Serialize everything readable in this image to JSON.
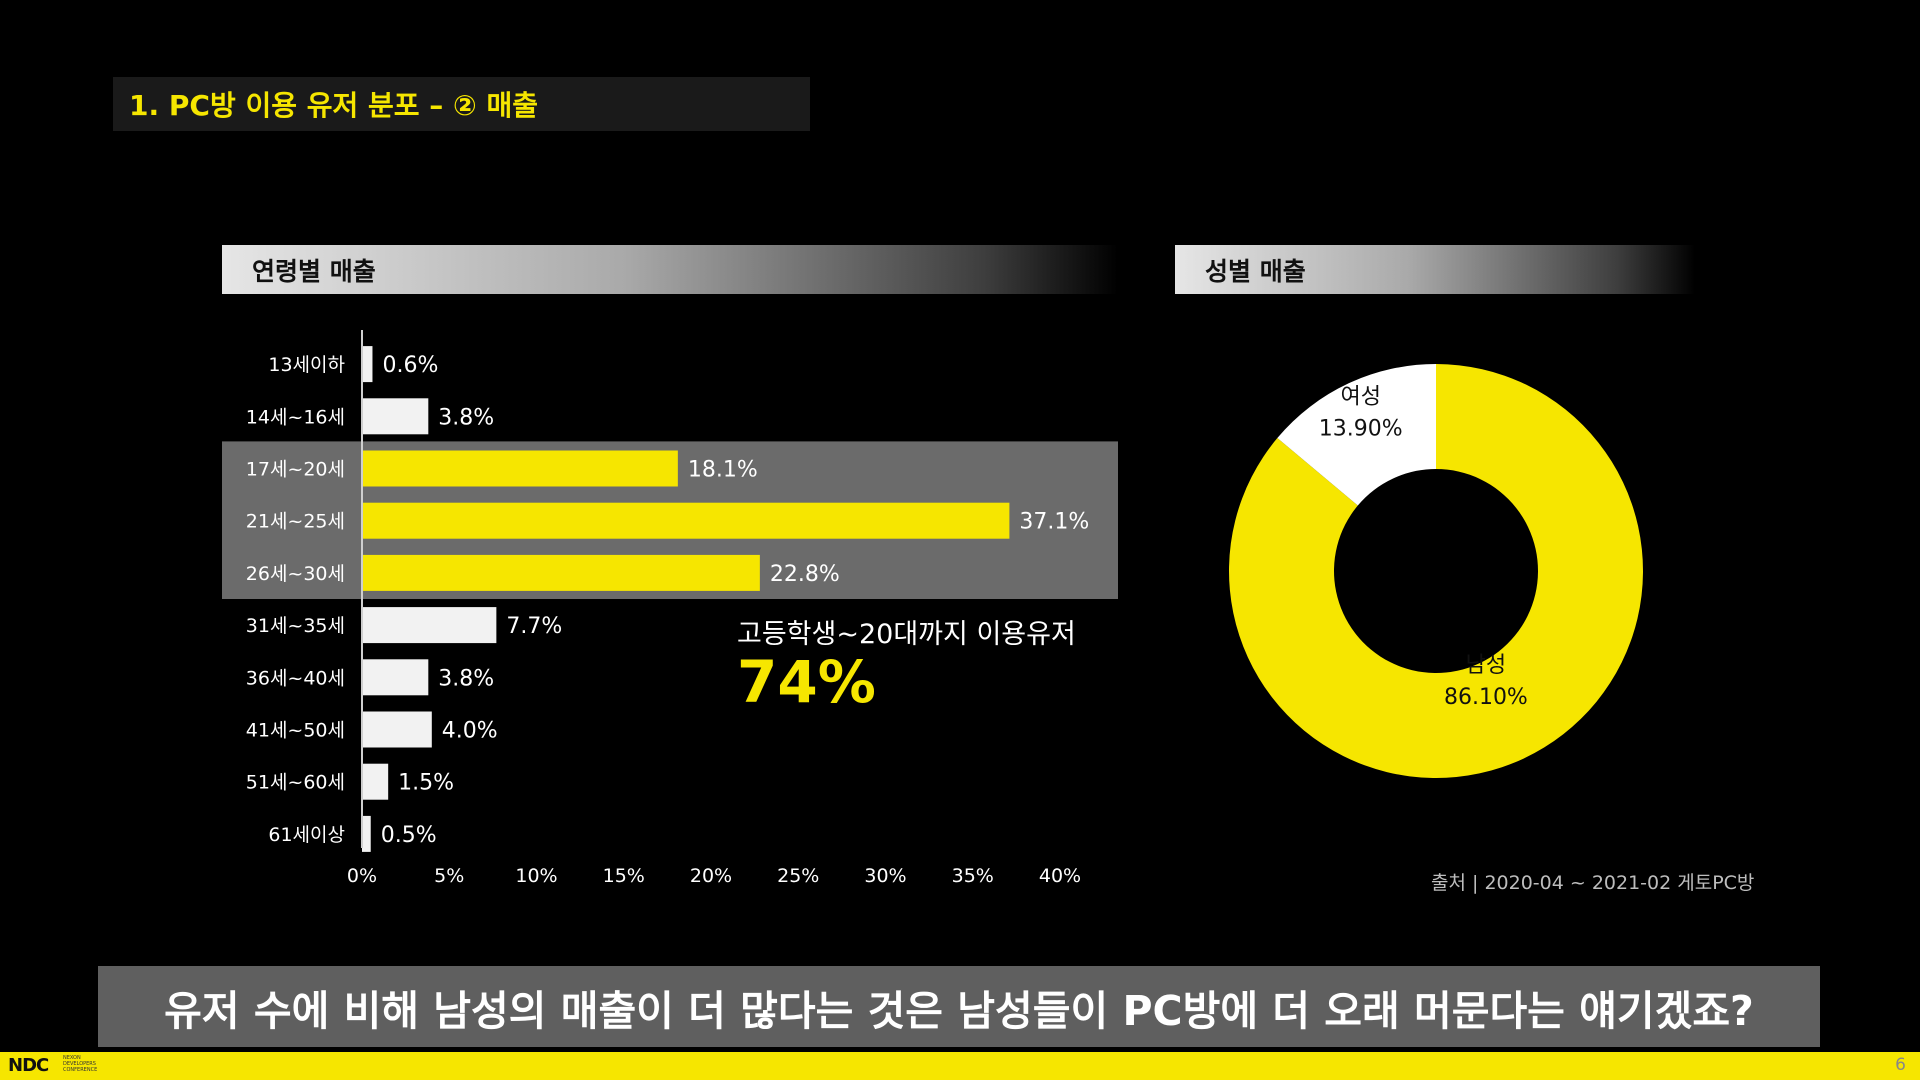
{
  "slide": {
    "title": "1. PC방 이용 유저 분포 – ② 매출",
    "page_number": "6",
    "footer_logo": "NDC",
    "footer_logo_sub": [
      "NEXON",
      "DEVELOPERS",
      "CONFERENCE"
    ]
  },
  "sections": {
    "age": "연령별 매출",
    "gender": "성별 매출"
  },
  "callout": {
    "text": "고등학생~20대까지 이용유저",
    "value": "74%"
  },
  "source": "출처 | 2020-04 ~ 2021-02 게토PC방",
  "banner": "유저 수에 비해 남성의 매출이 더 많다는 것은 남성들이 PC방에 더 오래 머문다는 얘기겠죠?",
  "colors": {
    "accent": "#f6e600",
    "bar_default": "#f2f2f2",
    "highlight_band": "#6b6b6b",
    "background": "#000000"
  },
  "chart_data": [
    {
      "type": "bar",
      "orientation": "horizontal",
      "title": "연령별 매출",
      "categories": [
        "13세이하",
        "14세~16세",
        "17세~20세",
        "21세~25세",
        "26세~30세",
        "31세~35세",
        "36세~40세",
        "41세~50세",
        "51세~60세",
        "61세이상"
      ],
      "values": [
        0.6,
        3.8,
        18.1,
        37.1,
        22.8,
        7.7,
        3.8,
        4.0,
        1.5,
        0.5
      ],
      "data_labels": [
        "0.6%",
        "3.8%",
        "18.1%",
        "37.1%",
        "22.8%",
        "7.7%",
        "3.8%",
        "4.0%",
        "1.5%",
        "0.5%"
      ],
      "highlighted": [
        false,
        false,
        true,
        true,
        true,
        false,
        false,
        false,
        false,
        false
      ],
      "x_ticks": [
        0,
        5,
        10,
        15,
        20,
        25,
        30,
        35,
        40
      ],
      "x_tick_labels": [
        "0%",
        "5%",
        "10%",
        "15%",
        "20%",
        "25%",
        "30%",
        "35%",
        "40%"
      ],
      "xlim": [
        0,
        40
      ],
      "grid": false
    },
    {
      "type": "pie",
      "variant": "donut",
      "title": "성별 매출",
      "slices": [
        {
          "label": "남성",
          "value": 86.1,
          "display": "86.10%",
          "color": "#f6e600"
        },
        {
          "label": "여성",
          "value": 13.9,
          "display": "13.90%",
          "color": "#ffffff"
        }
      ]
    }
  ]
}
